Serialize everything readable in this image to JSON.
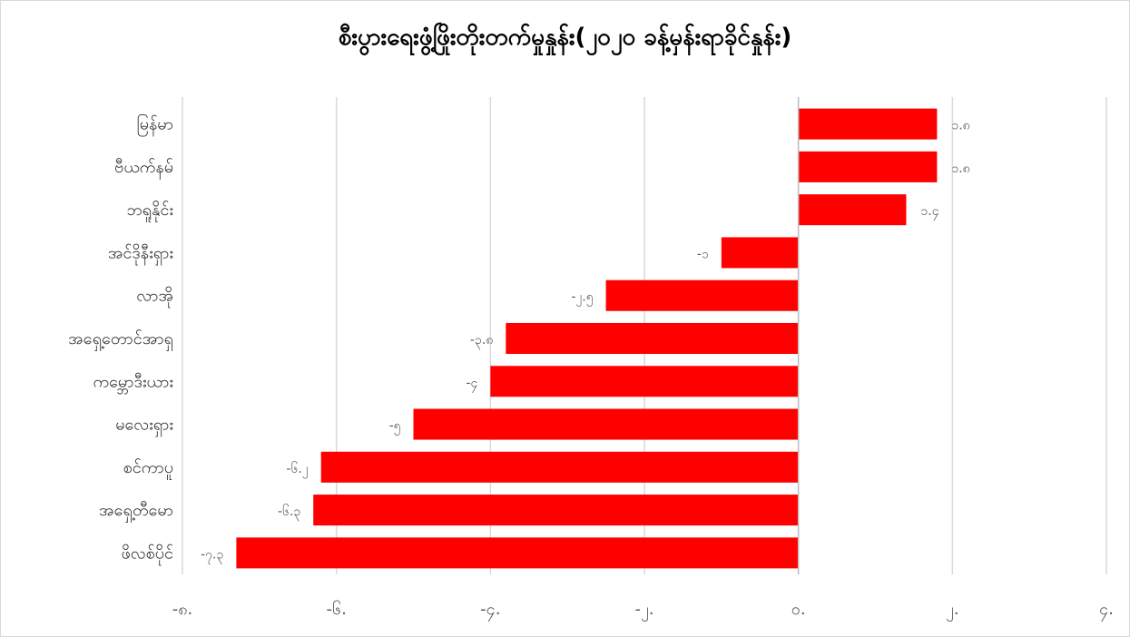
{
  "chart_data": {
    "type": "bar",
    "orientation": "horizontal",
    "title": "စီးပွားရေးဖွံ့ဖြိုးတိုးတက်မှုနှုန်း(၂၀၂၀ ခန့်မှန်းရာခိုင်နှုန်း)",
    "categories": [
      "မြန်မာ",
      "ဗီယက်နမ်",
      "ဘရူနိုင်း",
      "အင်ဒိုနီးရှား",
      "လာအို",
      "အရှေ့တောင်အာရှ",
      "ကမ္ဘောဒီးယား",
      "မလေးရှား",
      "စင်ကာပူ",
      "အရှေ့တီမော",
      "ဖိလစ်ပိုင်"
    ],
    "values": [
      1.8,
      1.8,
      1.4,
      -1,
      -2.5,
      -3.8,
      -4,
      -5,
      -6.2,
      -6.3,
      -7.3
    ],
    "value_labels": [
      "၁.၈",
      "၁.၈",
      "၁.၄",
      "-၁",
      "-၂.၅",
      "-၃.၈",
      "-၄",
      "-၅",
      "-၆.၂",
      "-၆.၃",
      "-၇.၃"
    ],
    "xlim": [
      -8,
      4
    ],
    "ticks": [
      -8,
      -6,
      -4,
      -2,
      0,
      2,
      4
    ],
    "tick_labels": [
      "-၈.",
      "-၆.",
      "-၄.",
      "-၂.",
      "၀.",
      "၂.",
      "၄."
    ],
    "bar_color": "#ff0000",
    "grid": true,
    "legend": "none"
  }
}
